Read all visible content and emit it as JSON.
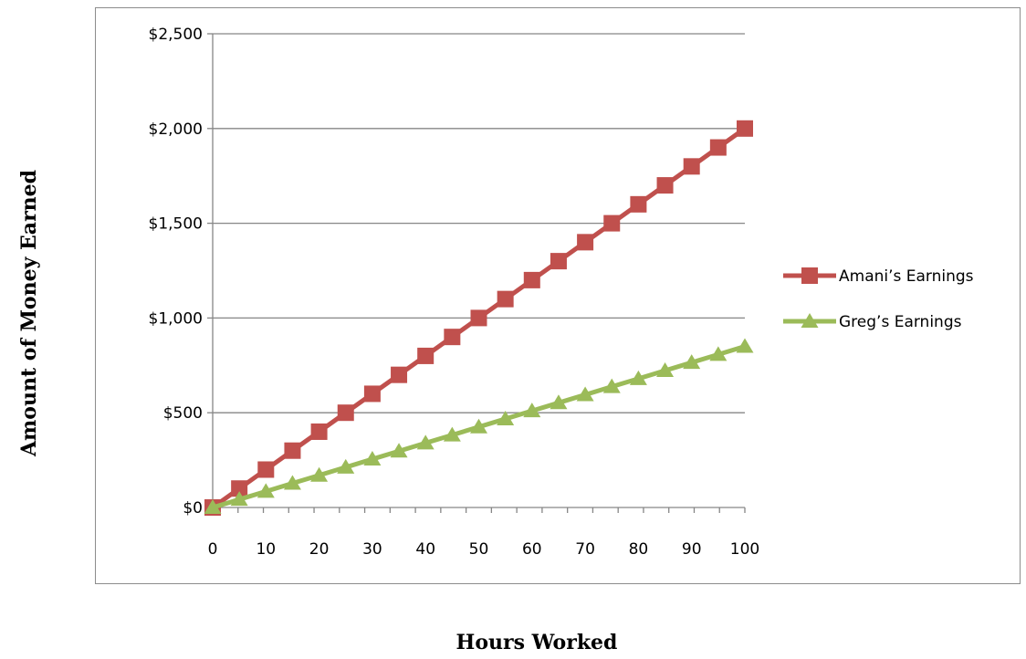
{
  "chart_data": {
    "type": "line",
    "xlabel": "Hours Worked",
    "ylabel": "Amount of Money Earned",
    "x": [
      0,
      5,
      10,
      15,
      20,
      25,
      30,
      35,
      40,
      45,
      50,
      55,
      60,
      65,
      70,
      75,
      80,
      85,
      90,
      95,
      100
    ],
    "x_ticks": [
      "0",
      "10",
      "20",
      "30",
      "40",
      "50",
      "60",
      "70",
      "80",
      "90",
      "100"
    ],
    "y_ticks": [
      "$0",
      "$500",
      "$1,000",
      "$1,500",
      "$2,000",
      "$2,500"
    ],
    "xlim": [
      0,
      100
    ],
    "ylim": [
      0,
      2500
    ],
    "grid": "horizontal",
    "legend_position": "right",
    "series": [
      {
        "name": "Amani’s Earnings",
        "color": "#c0504d",
        "marker": "square",
        "values": [
          0,
          100,
          200,
          300,
          400,
          500,
          600,
          700,
          800,
          900,
          1000,
          1100,
          1200,
          1300,
          1400,
          1500,
          1600,
          1700,
          1800,
          1900,
          2000
        ]
      },
      {
        "name": "Greg’s Earnings",
        "color": "#9bbb59",
        "marker": "triangle",
        "values": [
          0,
          42.5,
          85,
          127.5,
          170,
          212.5,
          255,
          297.5,
          340,
          382.5,
          425,
          467.5,
          510,
          552.5,
          595,
          637.5,
          680,
          722.5,
          765,
          807.5,
          850
        ]
      }
    ]
  }
}
